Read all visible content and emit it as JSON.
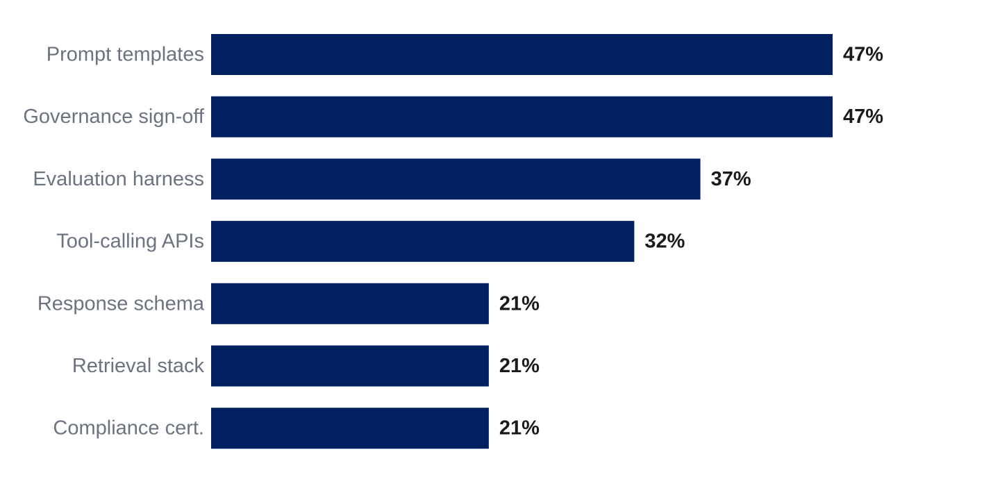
{
  "chart_data": {
    "type": "bar",
    "orientation": "horizontal",
    "categories": [
      "Prompt templates",
      "Governance sign-off",
      "Evaluation harness",
      "Tool-calling APIs",
      "Response schema",
      "Retrieval stack",
      "Compliance cert."
    ],
    "values": [
      47,
      47,
      37,
      32,
      21,
      21,
      21
    ],
    "value_labels": [
      "47%",
      "47%",
      "37%",
      "32%",
      "21%",
      "21%",
      "21%"
    ],
    "unit": "%",
    "title": "",
    "xlabel": "",
    "ylabel": "",
    "xlim": [
      0,
      47
    ],
    "grid": false,
    "legend": "none",
    "bar_color": "#002060"
  }
}
